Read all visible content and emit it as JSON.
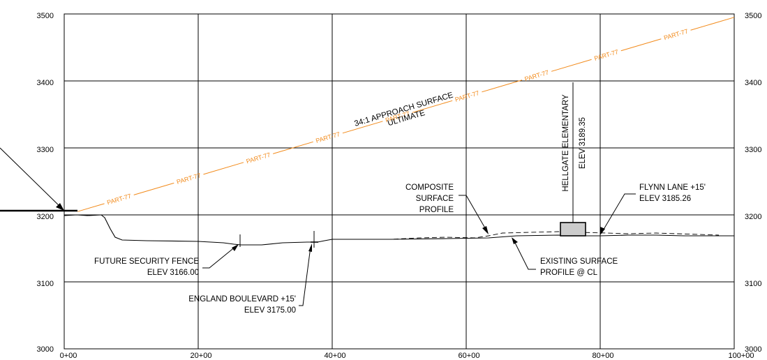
{
  "y_axis": {
    "left_ticks": [
      "3500",
      "3400",
      "3300",
      "3200",
      "3100",
      "3000"
    ],
    "right_ticks": [
      "3500",
      "3400",
      "3300",
      "3200",
      "3100",
      "3000"
    ],
    "range": [
      3000,
      3500
    ]
  },
  "x_axis": {
    "ticks": [
      "0+00",
      "20+00",
      "40+00",
      "60+00",
      "80+00",
      "100+00"
    ],
    "range_stations": [
      0,
      100
    ]
  },
  "approach_surface": {
    "title_line1": "34:1 APPROACH SURFACE",
    "title_line2": "ULTIMATE",
    "segment_label": "PART-77",
    "color": "#f28a1a",
    "start": {
      "station": 2,
      "elev": 3205
    },
    "end": {
      "station": 100,
      "elev": 3495
    }
  },
  "annotations": {
    "composite": {
      "line1": "COMPOSITE",
      "line2": "SURFACE",
      "line3": "PROFILE"
    },
    "school": {
      "line1": "HELLGATE ELEMENTARY",
      "line2": "ELEV 3189.35"
    },
    "flynn": {
      "line1": "FLYNN LANE +15'",
      "line2": "ELEV 3185.26"
    },
    "fence": {
      "line1": "FUTURE SECURITY FENCE",
      "line2": "ELEV 3166.00"
    },
    "existing": {
      "line1": "EXISTING SURFACE",
      "line2": "PROFILE @ CL"
    },
    "england": {
      "line1": "ENGLAND BOULEVARD +15'",
      "line2": "ELEV 3175.00"
    }
  }
}
